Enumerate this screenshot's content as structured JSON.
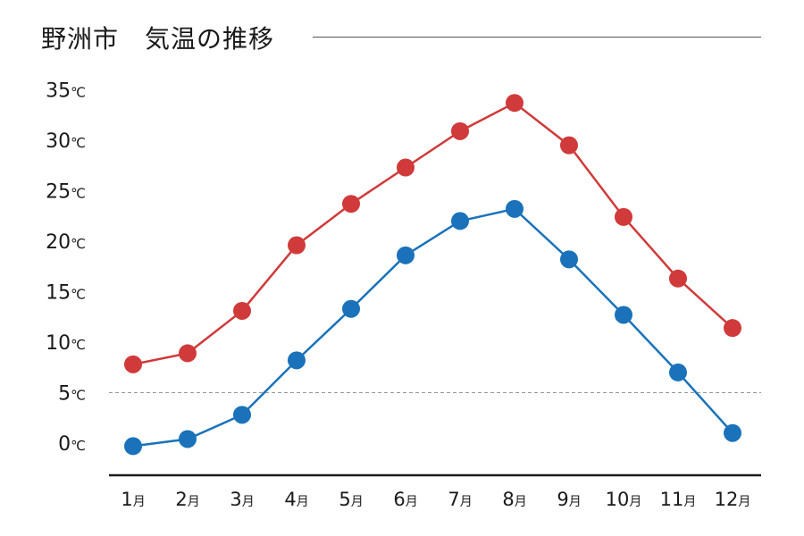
{
  "chart_data": {
    "type": "line",
    "title": "野洲市　気温の推移",
    "categories": [
      "1月",
      "2月",
      "3月",
      "4月",
      "5月",
      "6月",
      "7月",
      "8月",
      "9月",
      "10月",
      "11月",
      "12月"
    ],
    "series": [
      {
        "values": [
          7.8,
          8.9,
          13.1,
          19.6,
          23.7,
          27.3,
          30.9,
          33.7,
          29.5,
          22.4,
          16.3,
          11.4
        ],
        "color": "#d03a3a"
      },
      {
        "values": [
          -0.3,
          0.4,
          2.8,
          8.2,
          13.3,
          18.6,
          22.0,
          23.2,
          18.2,
          12.7,
          7.0,
          1.0
        ],
        "color": "#1a72ba"
      }
    ],
    "ylim": [
      0,
      35
    ],
    "yticks": [
      "0℃",
      "5℃",
      "10℃",
      "15℃",
      "20℃",
      "25℃",
      "30℃",
      "35℃"
    ],
    "reference_line": 5,
    "grid": false
  }
}
